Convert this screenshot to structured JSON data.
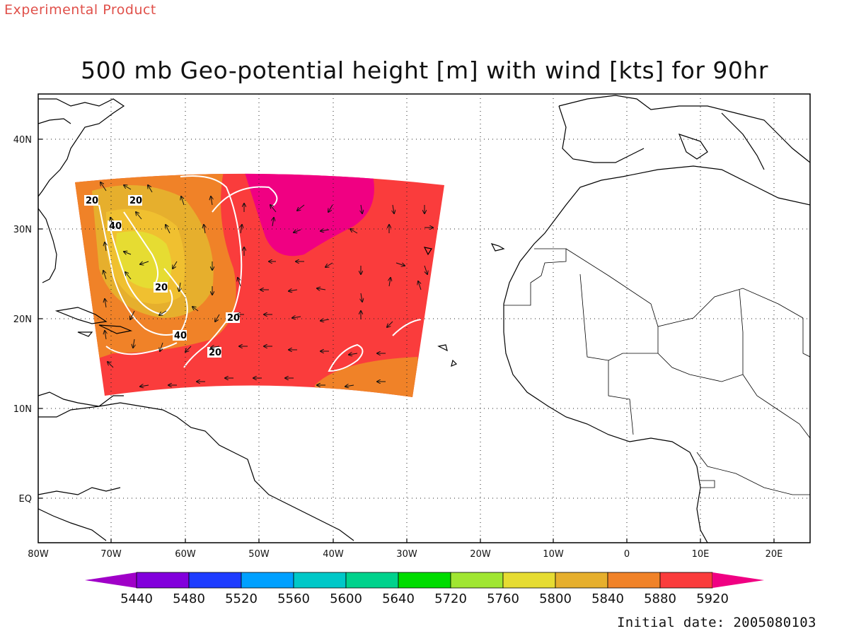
{
  "header": {
    "experimental_label": "Experimental Product",
    "title": "500 mb Geo-potential height [m] with wind [kts] for 90hr"
  },
  "footer": {
    "initial_date": "Initial date: 2005080103"
  },
  "map": {
    "lon_ticks": [
      "80W",
      "70W",
      "60W",
      "50W",
      "40W",
      "30W",
      "20W",
      "10W",
      "0",
      "10E",
      "20E"
    ],
    "lat_ticks": [
      "40N",
      "30N",
      "20N",
      "10N",
      "EQ"
    ],
    "isotach_labels": [
      "20",
      "20",
      "40",
      "20",
      "20",
      "40",
      "20"
    ]
  },
  "colorbar": {
    "labels": [
      "5440",
      "5480",
      "5520",
      "5560",
      "5600",
      "5640",
      "5720",
      "5760",
      "5800",
      "5840",
      "5880",
      "5920"
    ],
    "colors": [
      "#a000c8",
      "#8200dc",
      "#1e3cff",
      "#00a0ff",
      "#00c8c8",
      "#00d28c",
      "#00dc00",
      "#a0e632",
      "#e6dc32",
      "#e6af2d",
      "#f08228",
      "#fa3c3c",
      "#f00082"
    ]
  }
}
